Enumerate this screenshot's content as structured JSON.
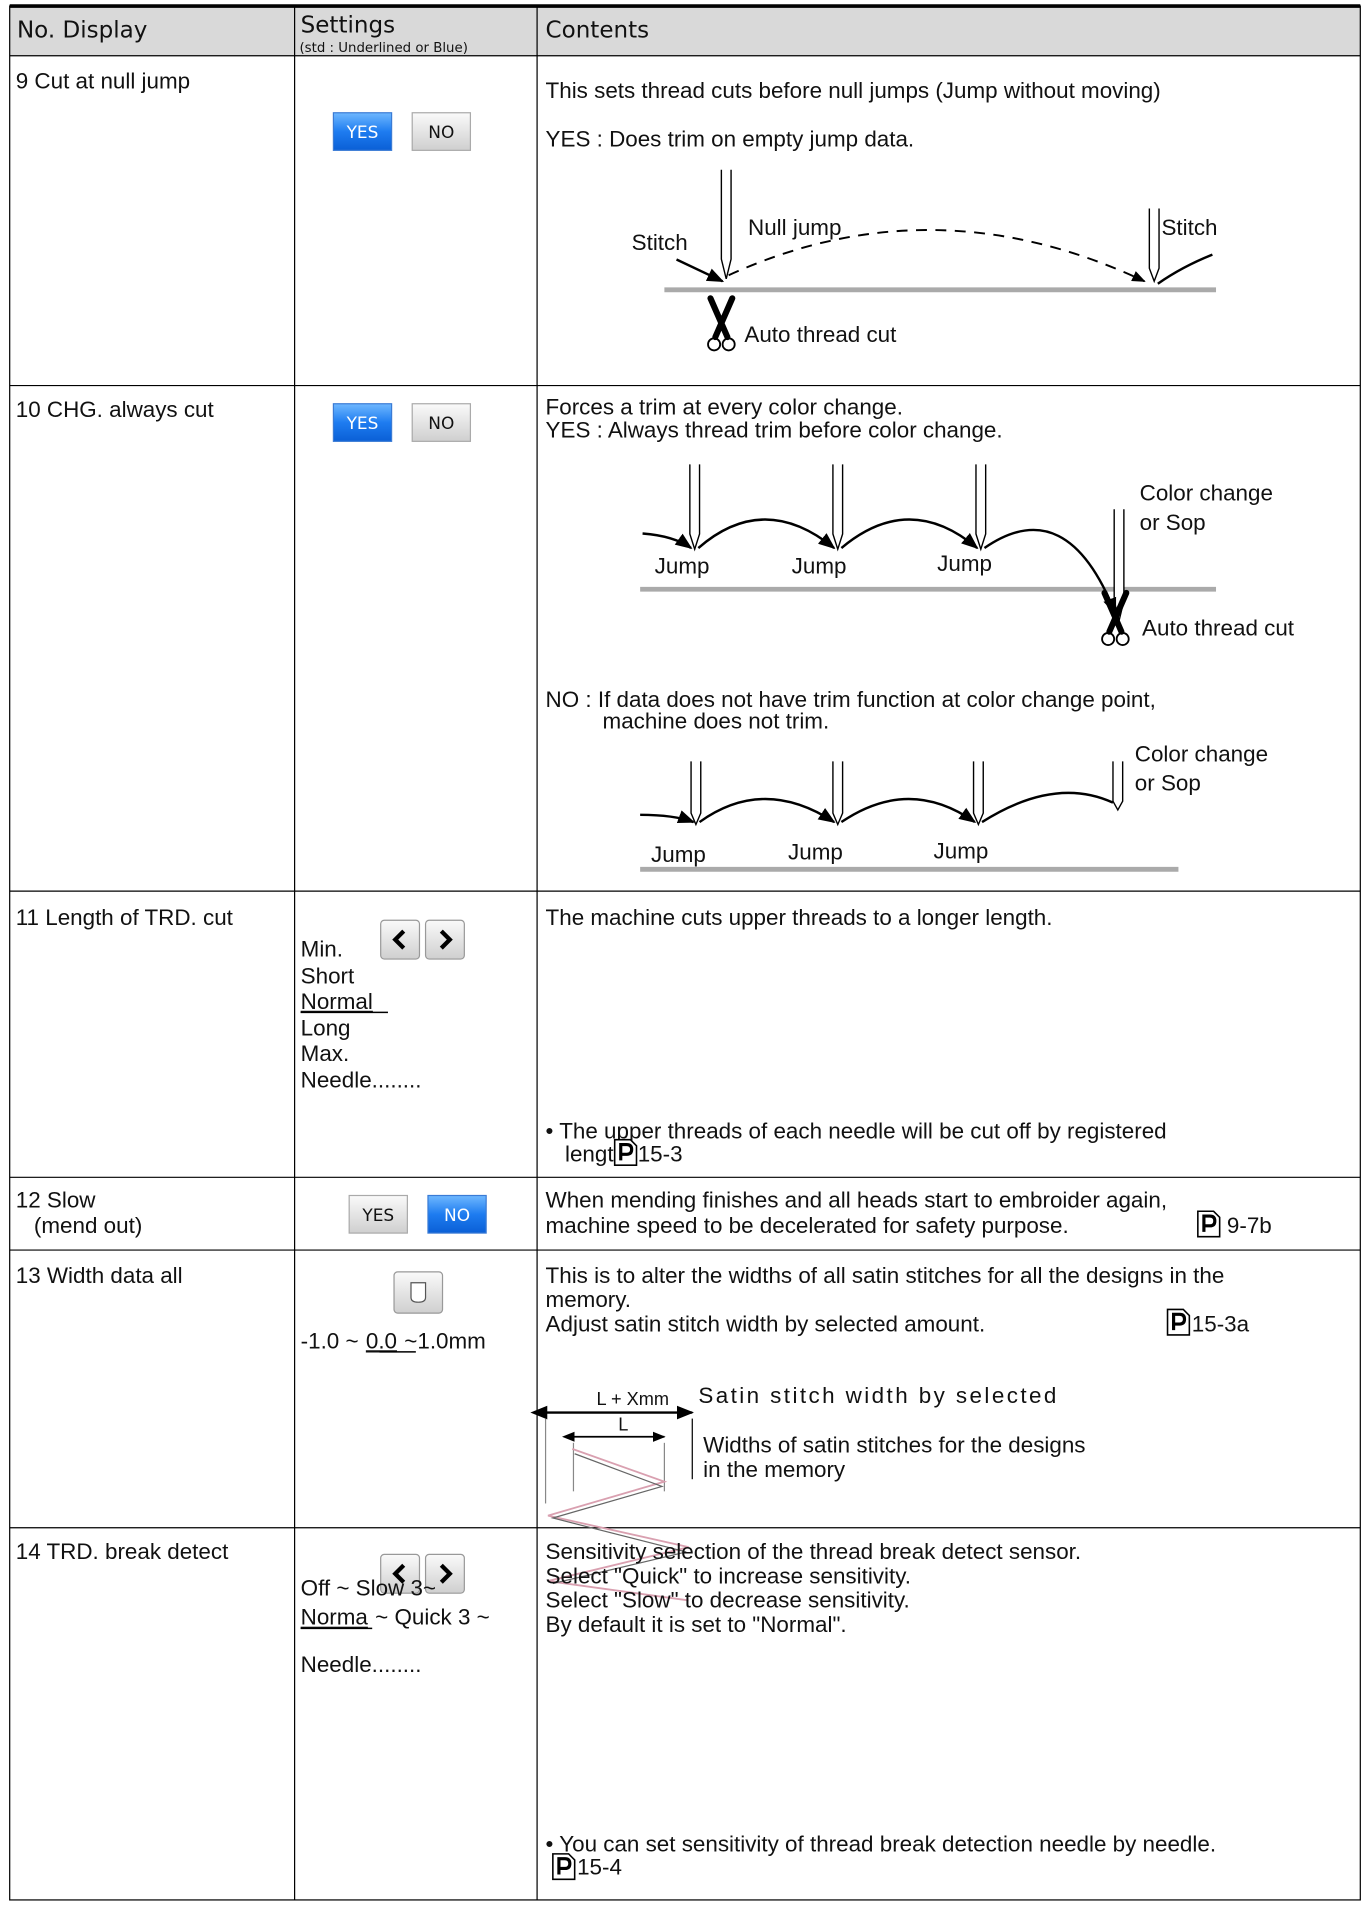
{
  "header": {
    "no_display": "No. Display",
    "settings": "Settings",
    "settings_note": "(std : Underlined or Blue)",
    "contents": "Contents"
  },
  "rows": [
    {
      "name": "9 Cut at null jump",
      "buttons": [
        "YES",
        "NO"
      ],
      "contents": [
        "This sets thread cuts before null jumps (Jump without moving)",
        "YES :  Does trim on empty jump data."
      ],
      "diagram": [
        "Stitch",
        "Null jump",
        "Stitch",
        "Auto thread cut"
      ]
    },
    {
      "name": "10 CHG. always cut",
      "buttons": [
        "YES",
        "NO"
      ],
      "contents": [
        "Forces a trim at every color change.",
        "YES :  Always thread trim before color change."
      ],
      "diagram": [
        "Jump",
        "Jump",
        "Jump",
        "Color change",
        "or Sop",
        "Auto thread cut"
      ],
      "contents_no": [
        "NO  : If data does not have trim function at color change point,",
        "machine does not trim."
      ],
      "diagram_no": [
        "Jump",
        "Jump",
        "Jump",
        "Color change",
        "or Sop"
      ]
    },
    {
      "name": "11 Length of TRD. cut",
      "options": [
        "Min.",
        "Short",
        "Normal",
        "Long",
        "Max.",
        "Needle........"
      ],
      "contents": [
        "The machine cuts upper threads to a longer length."
      ],
      "note": [
        "• The upper threads of each needle will be cut off by registered",
        "length."
      ],
      "ref": "15-3"
    },
    {
      "name": "12 Slow",
      "name_sub": "(mend out)",
      "buttons": [
        "YES",
        "NO"
      ],
      "contents": [
        "When mending finishes and all heads start to embroider again,",
        "machine speed to be decelerated for safety purpose."
      ],
      "ref": "9-7b"
    },
    {
      "name": "13 Width data all",
      "options": [
        "-1.0 ~",
        "0.0",
        "~1.0mm"
      ],
      "contents": [
        "This is to alter the widths of all satin stitches for all the designs in the",
        "memory.",
        "Adjust satin stitch width by selected amount."
      ],
      "ref": "15-3a",
      "diagram": [
        "L + Xmm",
        "Satin stitch width by selected",
        "L",
        "Widths of satin stitches for the designs",
        "in the memory"
      ]
    },
    {
      "name": "14 TRD. break  detect",
      "options": [
        "Off ~ Slow 3~",
        "Norma",
        "~ Quick 3 ~",
        "Needle........"
      ],
      "contents": [
        "Sensitivity selection of the thread break detect sensor.",
        "Select \"Quick\" to increase sensitivity.",
        "Select \"Slow\" to decrease sensitivity.",
        "By default it is set to \"Normal\"."
      ],
      "note": [
        "• You can set sensitivity of thread break detection needle by needle."
      ],
      "ref": "15-4"
    }
  ]
}
